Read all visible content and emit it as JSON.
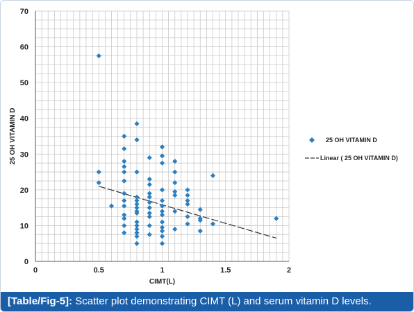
{
  "caption": {
    "label": "[Table/Fig-5]:",
    "text": "Scatter plot demonstrating CIMT (L) and serum vitamin D levels."
  },
  "chart_data": {
    "type": "scatter",
    "title": "",
    "xlabel": "CIMT(L)",
    "ylabel": "25 OH VITAMIN D",
    "xlim": [
      0,
      2
    ],
    "ylim": [
      0,
      70
    ],
    "x_ticks": [
      "0",
      "0.5",
      "1",
      "1.5",
      "2"
    ],
    "y_ticks": [
      "0",
      "10",
      "20",
      "30",
      "40",
      "50",
      "60",
      "70"
    ],
    "grid": true,
    "legend_position": "right",
    "series": [
      {
        "name": "25 OH VITAMIN D",
        "color": "#2a7fc1",
        "marker": "diamond",
        "points": [
          [
            0.5,
            57.5
          ],
          [
            0.5,
            25
          ],
          [
            0.5,
            22
          ],
          [
            0.6,
            15.5
          ],
          [
            0.7,
            35
          ],
          [
            0.7,
            31.5
          ],
          [
            0.7,
            28
          ],
          [
            0.7,
            26.5
          ],
          [
            0.7,
            25
          ],
          [
            0.7,
            22.5
          ],
          [
            0.7,
            19
          ],
          [
            0.7,
            17
          ],
          [
            0.7,
            15.5
          ],
          [
            0.7,
            13
          ],
          [
            0.7,
            12
          ],
          [
            0.7,
            10
          ],
          [
            0.7,
            8
          ],
          [
            0.8,
            38.5
          ],
          [
            0.8,
            34
          ],
          [
            0.8,
            25
          ],
          [
            0.8,
            18
          ],
          [
            0.8,
            17
          ],
          [
            0.8,
            16
          ],
          [
            0.8,
            15
          ],
          [
            0.8,
            14
          ],
          [
            0.8,
            13.5
          ],
          [
            0.8,
            11
          ],
          [
            0.8,
            10
          ],
          [
            0.8,
            9
          ],
          [
            0.8,
            8
          ],
          [
            0.8,
            7
          ],
          [
            0.8,
            5
          ],
          [
            0.9,
            29
          ],
          [
            0.9,
            23
          ],
          [
            0.9,
            21.5
          ],
          [
            0.9,
            19
          ],
          [
            0.9,
            18
          ],
          [
            0.9,
            16.5
          ],
          [
            0.9,
            15
          ],
          [
            0.9,
            13.5
          ],
          [
            0.9,
            12.5
          ],
          [
            0.9,
            10
          ],
          [
            0.9,
            7.5
          ],
          [
            1.0,
            32
          ],
          [
            1.0,
            29.5
          ],
          [
            1.0,
            27.5
          ],
          [
            1.0,
            20
          ],
          [
            1.0,
            17
          ],
          [
            1.0,
            15.5
          ],
          [
            1.0,
            14
          ],
          [
            1.0,
            13
          ],
          [
            1.0,
            11
          ],
          [
            1.0,
            9.5
          ],
          [
            1.0,
            8.5
          ],
          [
            1.0,
            7
          ],
          [
            1.0,
            5
          ],
          [
            1.1,
            28
          ],
          [
            1.1,
            25
          ],
          [
            1.1,
            22
          ],
          [
            1.1,
            19.5
          ],
          [
            1.1,
            18.5
          ],
          [
            1.1,
            14
          ],
          [
            1.1,
            9
          ],
          [
            1.2,
            20
          ],
          [
            1.2,
            18.5
          ],
          [
            1.2,
            17
          ],
          [
            1.2,
            16
          ],
          [
            1.2,
            12.5
          ],
          [
            1.2,
            10.5
          ],
          [
            1.3,
            14.5
          ],
          [
            1.3,
            12
          ],
          [
            1.3,
            11.5
          ],
          [
            1.3,
            8.5
          ],
          [
            1.4,
            24
          ],
          [
            1.4,
            10.5
          ],
          [
            1.9,
            12
          ]
        ]
      }
    ],
    "trendline": {
      "name": "Linear (   25 OH VITAMIN D)",
      "type": "linear",
      "x": [
        0.5,
        1.9
      ],
      "y": [
        21,
        6.5
      ],
      "color": "#333333",
      "style": "dashed"
    }
  }
}
